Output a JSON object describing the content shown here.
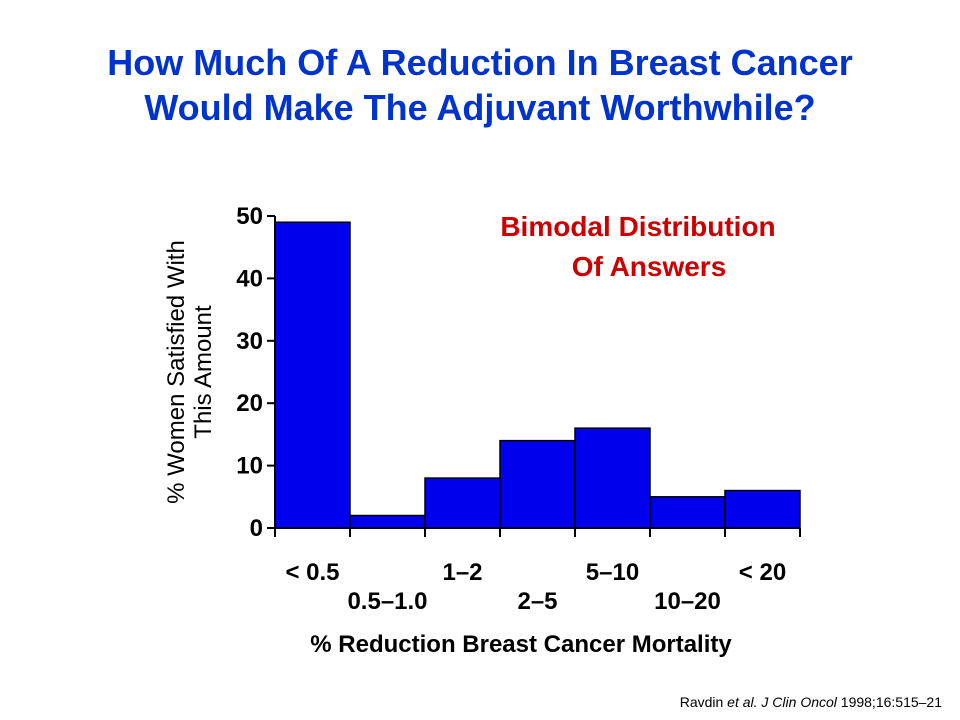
{
  "title_lines": [
    "How Much Of A Reduction In Breast Cancer",
    "Would Make The Adjuvant Worthwhile?"
  ],
  "annotation_lines": [
    "Bimodal Distribution",
    "Of Answers"
  ],
  "citation": {
    "author": "Ravdin ",
    "etal": "et al.",
    "journal": "J Clin Oncol",
    "ref": " 1998;16:515–21"
  },
  "colors": {
    "title": "#0033cc",
    "annotation": "#cc0000",
    "bar_fill": "#0000ee",
    "bar_stroke": "#000000",
    "text": "#000000"
  },
  "chart_data": {
    "type": "bar",
    "categories": [
      "< 0.5",
      "0.5–1.0",
      "1–2",
      "2–5",
      "5–10",
      "10–20",
      "< 20"
    ],
    "values": [
      49,
      2,
      8,
      14,
      16,
      5,
      6
    ],
    "xlabel": "% Reduction Breast Cancer Mortality",
    "ylabel_lines": [
      "% Women Satisfied With",
      "This Amount"
    ],
    "yticks": [
      0,
      10,
      20,
      30,
      40,
      50
    ],
    "ylim": [
      0,
      50
    ],
    "grid": false,
    "legend": "none"
  }
}
